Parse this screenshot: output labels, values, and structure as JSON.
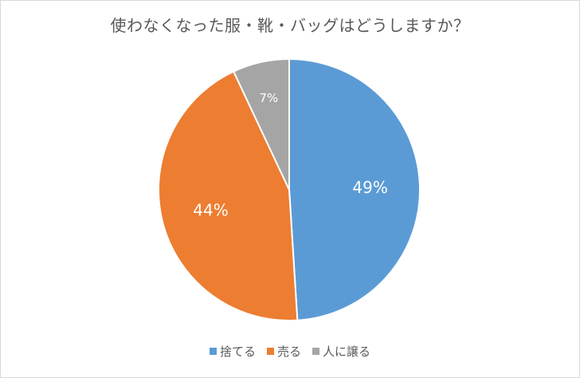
{
  "chart_data": {
    "type": "pie",
    "title": "使わなくなった服・靴・バッグはどうしますか？",
    "categories": [
      "捨てる",
      "売る",
      "人に譲る"
    ],
    "values": [
      49,
      44,
      7
    ],
    "labels": [
      "49%",
      "44%",
      "7%"
    ],
    "colors": [
      "#5b9bd5",
      "#ed7d31",
      "#a5a5a5"
    ],
    "start_angle_deg": 0,
    "direction": "clockwise",
    "legend": "bottom"
  }
}
